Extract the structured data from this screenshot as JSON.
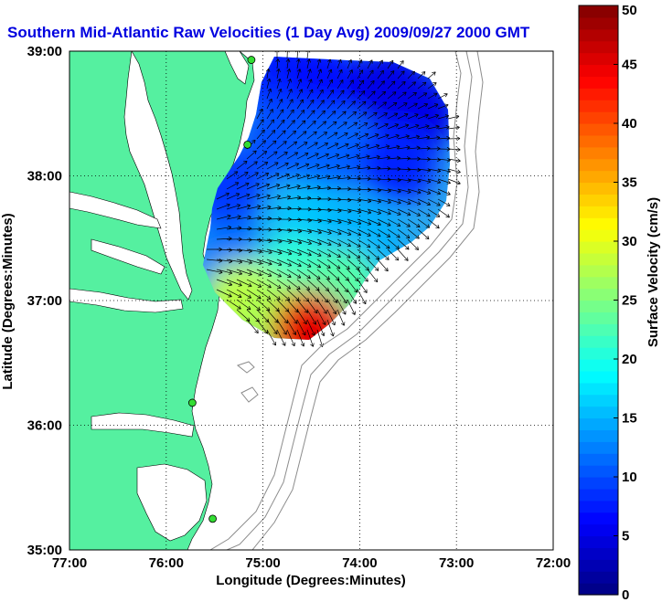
{
  "chart_data": {
    "type": "heatmap",
    "title": "Southern Mid-Atlantic Raw Velocities (1 Day Avg) 2009/09/27 2000 GMT",
    "xlabel": "Longitude (Degrees:Minutes)",
    "ylabel": "Latitude (Degrees:Minutes)",
    "xlim": [
      -77,
      -72
    ],
    "ylim": [
      35,
      39
    ],
    "x_ticks": [
      {
        "value": -77,
        "label": "77:00"
      },
      {
        "value": -76,
        "label": "76:00"
      },
      {
        "value": -75,
        "label": "75:00"
      },
      {
        "value": -74,
        "label": "74:00"
      },
      {
        "value": -73,
        "label": "73:00"
      },
      {
        "value": -72,
        "label": "72:00"
      }
    ],
    "y_ticks": [
      {
        "value": 35,
        "label": "35:00"
      },
      {
        "value": 36,
        "label": "36:00"
      },
      {
        "value": 37,
        "label": "37:00"
      },
      {
        "value": 38,
        "label": "38:00"
      },
      {
        "value": 39,
        "label": "39:00"
      }
    ],
    "grid": true,
    "colorbar": {
      "label": "Surface Velocity (cm/s)",
      "min": 0,
      "max": 50,
      "ticks": [
        0,
        5,
        10,
        15,
        20,
        25,
        30,
        35,
        40,
        45,
        50
      ],
      "levels": 50
    },
    "radar_stations": [
      {
        "lon": -75.12,
        "lat": 38.93
      },
      {
        "lon": -75.16,
        "lat": 38.25
      },
      {
        "lon": -75.73,
        "lat": 36.18
      },
      {
        "lon": -75.52,
        "lat": 35.25
      }
    ],
    "velocity_field": [
      {
        "lon": -74.9,
        "lat": 38.85,
        "speed": 8
      },
      {
        "lon": -74.4,
        "lat": 38.75,
        "speed": 7
      },
      {
        "lon": -73.7,
        "lat": 38.7,
        "speed": 5
      },
      {
        "lon": -73.4,
        "lat": 38.5,
        "speed": 5
      },
      {
        "lon": -74.8,
        "lat": 38.3,
        "speed": 10
      },
      {
        "lon": -74.3,
        "lat": 38.2,
        "speed": 11
      },
      {
        "lon": -73.6,
        "lat": 38.1,
        "speed": 8
      },
      {
        "lon": -75.4,
        "lat": 37.9,
        "speed": 9
      },
      {
        "lon": -74.5,
        "lat": 37.6,
        "speed": 16
      },
      {
        "lon": -74.0,
        "lat": 37.5,
        "speed": 15
      },
      {
        "lon": -75.3,
        "lat": 37.3,
        "speed": 12
      },
      {
        "lon": -74.7,
        "lat": 37.2,
        "speed": 21
      },
      {
        "lon": -74.2,
        "lat": 37.1,
        "speed": 23
      },
      {
        "lon": -75.2,
        "lat": 37.0,
        "speed": 28
      },
      {
        "lon": -74.8,
        "lat": 36.85,
        "speed": 27
      },
      {
        "lon": -74.5,
        "lat": 36.75,
        "speed": 45
      }
    ]
  }
}
